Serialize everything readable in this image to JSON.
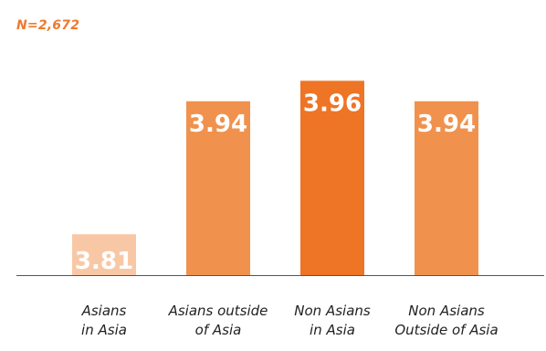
{
  "sample_note": "N=2,672",
  "chart_data": {
    "type": "bar",
    "categories": [
      [
        "Asians",
        "in Asia"
      ],
      [
        "Asians outside",
        "of Asia"
      ],
      [
        "Non Asians",
        "in Asia"
      ],
      [
        "Non Asians",
        "Outside of Asia"
      ]
    ],
    "values": [
      3.81,
      3.94,
      3.96,
      3.94
    ],
    "value_labels": [
      "3.81",
      "3.94",
      "3.96",
      "3.94"
    ],
    "colors": [
      "#f8c8a6",
      "#f0924e",
      "#ee7426",
      "#f0924e"
    ],
    "ylim": [
      3.77,
      3.98
    ],
    "title": "",
    "xlabel": "",
    "ylabel": "",
    "grid": false,
    "legend": "none"
  }
}
